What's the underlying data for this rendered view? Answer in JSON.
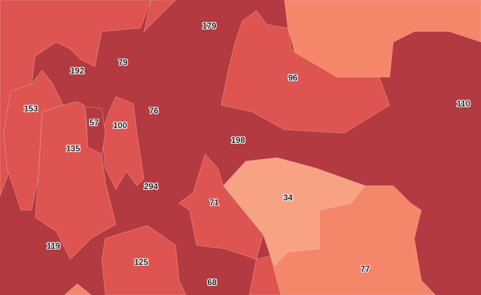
{
  "map": {
    "colors": {
      "level_1": "#b23a40",
      "level_2": "#dd5450",
      "level_3": "#f4866a",
      "level_4": "#f8a284"
    },
    "regions": [
      {
        "label": "179",
        "level": 1
      },
      {
        "label": "79",
        "level": 1
      },
      {
        "label": "192",
        "level": 1
      },
      {
        "label": "96",
        "level": 2
      },
      {
        "label": "110",
        "level": 1
      },
      {
        "label": "153",
        "level": 2
      },
      {
        "label": "76",
        "level": 1
      },
      {
        "label": "57",
        "level": 1
      },
      {
        "label": "100",
        "level": 2
      },
      {
        "label": "198",
        "level": 1
      },
      {
        "label": "135",
        "level": 2
      },
      {
        "label": "294",
        "level": 1
      },
      {
        "label": "34",
        "level": 4
      },
      {
        "label": "71",
        "level": 2
      },
      {
        "label": "119",
        "level": 1
      },
      {
        "label": "125",
        "level": 2
      },
      {
        "label": "77",
        "level": 3
      },
      {
        "label": "68",
        "level": 1
      }
    ]
  }
}
